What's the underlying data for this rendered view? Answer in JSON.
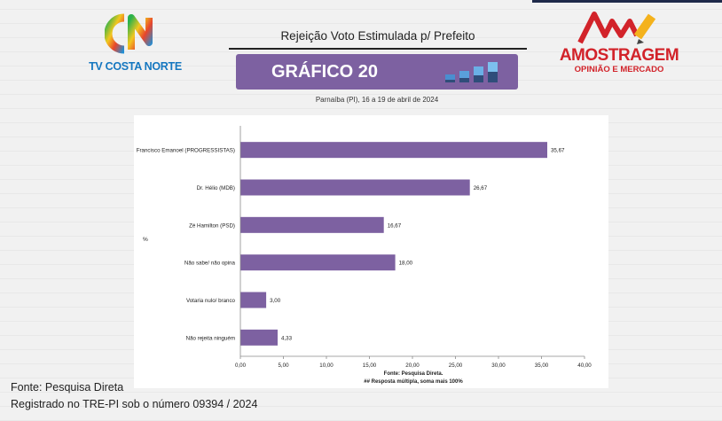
{
  "header": {
    "title": "Rejeição Voto Estimulada p/ Prefeito",
    "chart_badge": "GRÁFICO 20",
    "location_date": "Parnaíba (PI), 16 a 19 de abril de 2024"
  },
  "logos": {
    "tv_name": "TV COSTA NORTE",
    "brand_name": "AMOSTRAGEM",
    "brand_tagline": "OPINIÃO E MERCADO"
  },
  "colors": {
    "bar": "#7d61a1",
    "banner": "#7d61a1",
    "brand_red": "#d2232a",
    "tv_blue": "#1577c0"
  },
  "chart_data": {
    "type": "bar",
    "orientation": "horizontal",
    "categories": [
      "Francisco Emanoel (PROGRESSISTAS)",
      "Dr. Hélio (MDB)",
      "Zé Hamilton (PSD)",
      "Não sabe/ não opina",
      "Votaria nulo/ branco",
      "Não rejeita ninguém"
    ],
    "values": [
      35.67,
      26.67,
      16.67,
      18.0,
      3.0,
      4.33
    ],
    "value_labels": [
      "35,67",
      "26,67",
      "16,67",
      "18,00",
      "3,00",
      "4,33"
    ],
    "xlim": [
      0,
      40
    ],
    "x_ticks": [
      "0,00",
      "5,00",
      "10,00",
      "15,00",
      "20,00",
      "25,00",
      "30,00",
      "35,00",
      "40,00"
    ],
    "ylabel": "%",
    "grid": false,
    "source_note": "Fonte: Pesquisa Direta.",
    "multi_note": "##  Resposta múltipla, soma mais 100%"
  },
  "footer": {
    "source": "Fonte: Pesquisa Direta",
    "registration": "Registrado no TRE-PI sob o número 09394 / 2024"
  }
}
